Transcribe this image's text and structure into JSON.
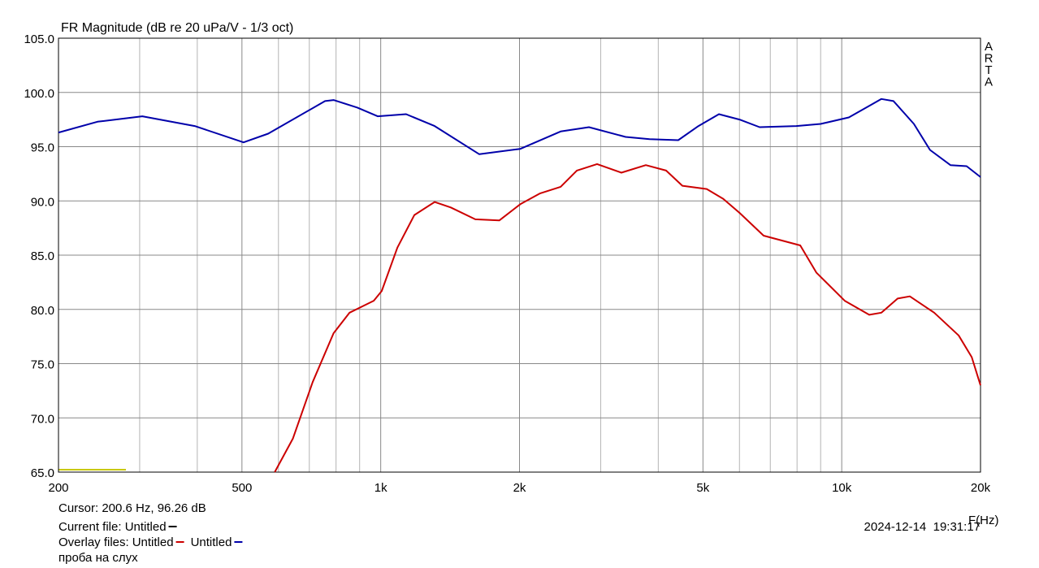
{
  "chart_data": {
    "type": "line",
    "title": "FR Magnitude (dB re 20 uPa/V - 1/3 oct)",
    "watermark": "ARTA",
    "xlabel": "F(Hz)",
    "log_x": true,
    "grid": true,
    "xlim": [
      200,
      20000
    ],
    "ylim": [
      65,
      105
    ],
    "xticks": [
      200,
      500,
      {
        "value": 1000,
        "label": "1k"
      },
      {
        "value": 2000,
        "label": "2k"
      },
      {
        "value": 5000,
        "label": "5k"
      },
      {
        "value": 10000,
        "label": "10k"
      },
      {
        "value": 20000,
        "label": "20k"
      }
    ],
    "minor_xticks": [
      300,
      400,
      600,
      700,
      800,
      900,
      3000,
      4000,
      6000,
      7000,
      8000,
      9000
    ],
    "yticks": [
      {
        "value": 65,
        "label": "65.0"
      },
      {
        "value": 70,
        "label": "70.0"
      },
      {
        "value": 75,
        "label": "75.0"
      },
      {
        "value": 80,
        "label": "80.0"
      },
      {
        "value": 85,
        "label": "85.0"
      },
      {
        "value": 90,
        "label": "90.0"
      },
      {
        "value": 95,
        "label": "95.0"
      },
      {
        "value": 100,
        "label": "100.0"
      },
      {
        "value": 105,
        "label": "105.0"
      }
    ],
    "cursor": "Cursor: 200.6 Hz, 96.26 dB",
    "current_file_label": "Current file: Untitled",
    "current_file_color": "#000000",
    "overlay_label": "Overlay files:",
    "timestamp": "2024-12-14  19:31:17",
    "note": "проба на слух",
    "series": [
      {
        "name": "Untitled",
        "color": "#cc0000",
        "x": [
          589,
          645,
          712,
          790,
          856,
          966,
          1005,
          1087,
          1183,
          1309,
          1419,
          1604,
          1808,
          2008,
          2218,
          2456,
          2663,
          2946,
          3327,
          3758,
          4160,
          4512,
          5096,
          5530,
          6000,
          6770,
          8130,
          8810,
          10150,
          11470,
          12190,
          13220,
          14050,
          15870,
          17930,
          19140,
          20000
        ],
        "values": [
          65.0,
          68.1,
          73.3,
          77.8,
          79.7,
          80.8,
          81.7,
          85.7,
          88.7,
          89.9,
          89.4,
          88.3,
          88.2,
          89.7,
          90.7,
          91.3,
          92.8,
          93.4,
          92.6,
          93.3,
          92.8,
          91.4,
          91.1,
          90.2,
          88.9,
          86.8,
          85.9,
          83.4,
          80.8,
          79.5,
          79.7,
          81.0,
          81.2,
          79.7,
          77.6,
          75.6,
          73.0
        ]
      },
      {
        "name": "Untitled",
        "color": "#0000aa",
        "x": [
          200,
          243,
          304,
          395,
          504,
          570,
          757,
          790,
          890,
          985,
          1135,
          1309,
          1636,
          2008,
          2456,
          2829,
          3397,
          3830,
          4420,
          4890,
          5415,
          6000,
          6636,
          7970,
          9000,
          10360,
          12190,
          12950,
          14340,
          15540,
          17210,
          18660,
          20000
        ],
        "values": [
          96.3,
          97.3,
          97.8,
          96.9,
          95.4,
          96.2,
          99.2,
          99.3,
          98.6,
          97.8,
          98.0,
          96.9,
          94.3,
          94.8,
          96.4,
          96.8,
          95.9,
          95.7,
          95.6,
          96.9,
          98.0,
          97.5,
          96.8,
          96.9,
          97.1,
          97.7,
          99.4,
          99.2,
          97.1,
          94.7,
          93.3,
          93.2,
          92.2
        ]
      }
    ]
  }
}
